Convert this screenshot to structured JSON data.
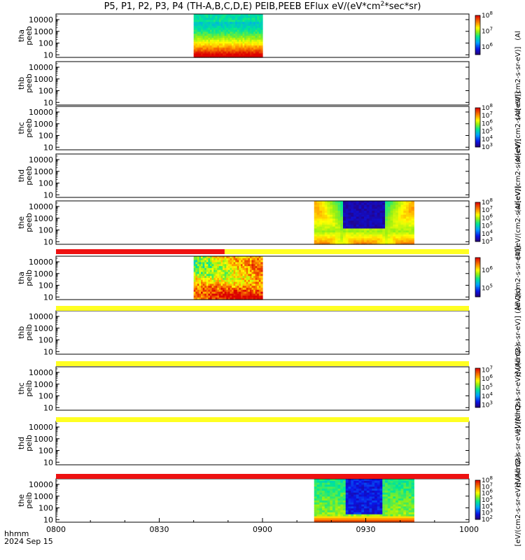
{
  "chart_data": {
    "type": "heatmap",
    "title": "P5, P1, P2, P3, P4 (TH-A,B,C,D,E) PEIB,PEEB EFlux eV/(eV*cm",
    "title_sup": "2",
    "title_end": "*sec*sr)",
    "x_ticks": [
      "0800",
      "0830",
      "0900",
      "0930",
      "1000"
    ],
    "x_tick_minutes": [
      0,
      30,
      60,
      90,
      120
    ],
    "x_range_minutes": [
      0,
      120
    ],
    "x_label_line1": "hhmm",
    "x_label_line2": "2024 Sep 15",
    "y_scale": "log",
    "y_ticks": [
      "10",
      "100",
      "1000",
      "10000"
    ],
    "y_tick_values": [
      10,
      100,
      1000,
      10000
    ],
    "y_range": [
      6,
      30000
    ],
    "colors": {
      "status_red": "#ee1111",
      "status_yellow": "#ffff22",
      "spectrogram_low": "#2a0a8a",
      "spectrogram_high": "#dd0000"
    },
    "panels": [
      {
        "line1": "tha",
        "line2": "peeb",
        "colorbar": {
          "ticks": [
            "6",
            "7",
            "8"
          ],
          "exp_range": [
            5.5,
            8
          ],
          "label": "(Al"
        },
        "data": {
          "t0": 40,
          "t1": 60,
          "kind": "tha_peeb"
        }
      },
      {
        "line1": "thb",
        "line2": "peeb",
        "colorbar": null,
        "cb_label": "(Al[eV/(cm2-s-sr-eV)]",
        "data": null
      },
      {
        "line1": "thc",
        "line2": "peeb",
        "colorbar": {
          "ticks": [
            "3",
            "4",
            "5",
            "6",
            "7",
            "8"
          ],
          "exp_range": [
            3,
            8
          ],
          "label": "(Al[eV/(cm2-s-sr-eV)]"
        },
        "data": null
      },
      {
        "line1": "thd",
        "line2": "peeb",
        "colorbar": null,
        "cb_label": "(Al[eV/(cm2-s-sr-eV)]",
        "data": null
      },
      {
        "line1": "the",
        "line2": "peeb",
        "colorbar": {
          "ticks": [
            "3",
            "4",
            "5",
            "6",
            "7",
            "8"
          ],
          "exp_range": [
            3,
            8
          ],
          "label": "(Al[eV/(cm2-s-sr-eV)]"
        },
        "data": {
          "t0": 75,
          "t1": 104,
          "kind": "the_peeb"
        }
      },
      {
        "line1": "tha",
        "line2": "peib",
        "colorbar": {
          "ticks": [
            "5",
            "6"
          ],
          "exp_range": [
            4.5,
            6.7
          ],
          "label": "[eV/(cm2-s-sr-eV)]"
        },
        "data": {
          "t0": 40,
          "t1": 60,
          "kind": "tha_peib"
        }
      },
      {
        "line1": "thb",
        "line2": "peib",
        "colorbar": null,
        "cb_label": "eV/(cm2-s-sr-eV)] (All Qs)",
        "data": null
      },
      {
        "line1": "thc",
        "line2": "peib",
        "colorbar": {
          "ticks": [
            "3",
            "4",
            "5",
            "6",
            "7"
          ],
          "exp_range": [
            2.7,
            7.2
          ],
          "label": "eV/(cm2-s-sr-eV)] (All Qs)"
        },
        "data": null
      },
      {
        "line1": "thd",
        "line2": "peib",
        "colorbar": null,
        "cb_label": "eV/(cm2-s-sr-eV)] (All Qs)",
        "data": null
      },
      {
        "line1": "the",
        "line2": "peib",
        "colorbar": {
          "ticks": [
            "2",
            "3",
            "4",
            "5",
            "6",
            "7",
            "8"
          ],
          "exp_range": [
            2,
            8
          ],
          "label": "[eV/(cm2-s-sr-eV)] (All Qs)"
        },
        "data": {
          "t0": 75,
          "t1": 104,
          "kind": "the_peib"
        }
      }
    ],
    "status_bars": [
      {
        "after_panel": 4,
        "segments": [
          {
            "t0": 0,
            "t1": 49,
            "color": "red"
          },
          {
            "t0": 49,
            "t1": 120,
            "color": "yellow"
          }
        ]
      },
      {
        "after_panel": 5,
        "segments": [
          {
            "t0": 0,
            "t1": 120,
            "color": "yellow"
          }
        ]
      },
      {
        "after_panel": 6,
        "segments": [
          {
            "t0": 0,
            "t1": 120,
            "color": "yellow"
          }
        ]
      },
      {
        "after_panel": 7,
        "segments": [
          {
            "t0": 0,
            "t1": 120,
            "color": "yellow"
          }
        ]
      },
      {
        "after_panel": 8,
        "segments": [
          {
            "t0": 0,
            "t1": 120,
            "color": "red"
          }
        ]
      }
    ]
  }
}
